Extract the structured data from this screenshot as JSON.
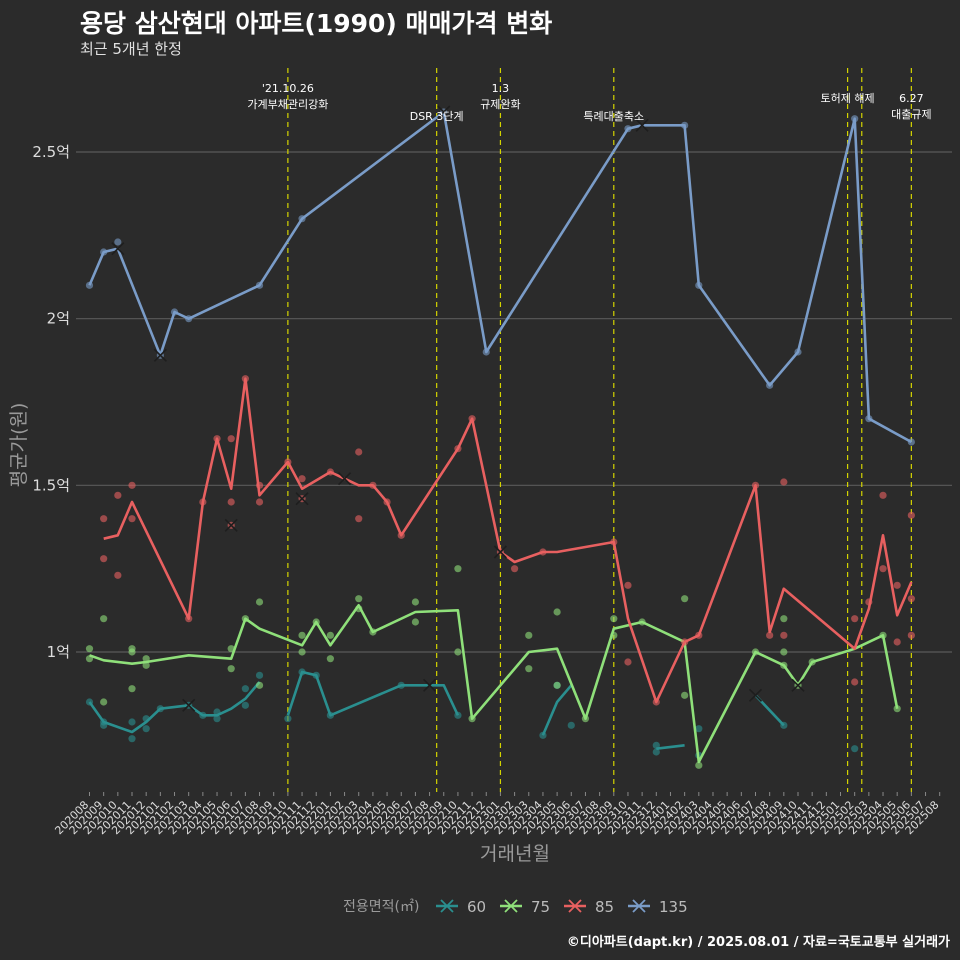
{
  "header": {
    "title": "용당 삼산현대 아파트(1990) 매매가격 변화",
    "subtitle": "최근 5개년 한정"
  },
  "caption": "©디아파트(dapt.kr) / 2025.08.01 / 자료=국토교통부 실거래가",
  "colors": {
    "background": "#2b2b2b",
    "grid": "#5a5a5a",
    "vline": "#d4d400",
    "s60": "#2a8f8f",
    "s75": "#8fe07a",
    "s85": "#e86060",
    "s135": "#7a9cc8"
  },
  "chart_data": {
    "type": "line",
    "xlabel": "거래년월",
    "ylabel": "평균가(원)",
    "x_categories": [
      "202008",
      "202009",
      "202010",
      "202011",
      "202012",
      "202101",
      "202102",
      "202103",
      "202104",
      "202105",
      "202106",
      "202107",
      "202108",
      "202109",
      "202110",
      "202111",
      "202112",
      "202201",
      "202202",
      "202203",
      "202204",
      "202205",
      "202206",
      "202207",
      "202208",
      "202209",
      "202210",
      "202211",
      "202212",
      "202301",
      "202302",
      "202303",
      "202304",
      "202305",
      "202306",
      "202307",
      "202308",
      "202309",
      "202310",
      "202311",
      "202312",
      "202401",
      "202402",
      "202403",
      "202404",
      "202405",
      "202406",
      "202407",
      "202408",
      "202409",
      "202410",
      "202411",
      "202412",
      "202501",
      "202502",
      "202503",
      "202504",
      "202505",
      "202506",
      "202507",
      "202508"
    ],
    "y_ticks": [
      {
        "value": 1.0,
        "label": "1억"
      },
      {
        "value": 1.5,
        "label": "1.5억"
      },
      {
        "value": 2.0,
        "label": "2억"
      },
      {
        "value": 2.5,
        "label": "2.5억"
      }
    ],
    "ylim": [
      0.58,
      2.77
    ],
    "grid": true,
    "legend": {
      "title": "전용면적(㎡)",
      "position": "bottom"
    },
    "annotations": [
      {
        "x": 14,
        "lines": [
          "'21.10.26",
          "가계부채관리강화"
        ],
        "level": 0
      },
      {
        "x": 24.5,
        "lines": [
          "DSR 3단계"
        ],
        "level": 2
      },
      {
        "x": 29,
        "lines": [
          "1.3",
          "규제완화"
        ],
        "level": 0
      },
      {
        "x": 37,
        "lines": [
          "특례대출축소"
        ],
        "level": 2
      },
      {
        "x": 53.5,
        "lines": [
          "토허제 해제"
        ],
        "level": 1
      },
      {
        "x": 58,
        "lines": [
          "6.27",
          "대출규제"
        ],
        "level": 1
      }
    ],
    "vlines": [
      14,
      24.5,
      29,
      37,
      53.5,
      54.5,
      58
    ],
    "series": [
      {
        "name": "60",
        "color": "#2a8f8f",
        "segments": [
          [
            [
              0,
              0.85
            ],
            [
              1,
              0.79
            ],
            [
              3,
              0.76
            ],
            [
              4,
              0.79
            ],
            [
              5,
              0.83
            ],
            [
              7,
              0.84
            ],
            [
              8,
              0.81
            ],
            [
              9,
              0.81
            ],
            [
              10,
              0.83
            ],
            [
              11,
              0.86
            ],
            [
              12,
              0.91
            ]
          ],
          [
            [
              14,
              0.81
            ],
            [
              15,
              0.94
            ],
            [
              16,
              0.93
            ],
            [
              17,
              0.81
            ],
            [
              22,
              0.9
            ],
            [
              25,
              0.9
            ],
            [
              26,
              0.81
            ]
          ],
          [
            [
              32,
              0.75
            ],
            [
              33,
              0.85
            ],
            [
              34,
              0.9
            ]
          ],
          [
            [
              40,
              0.71
            ],
            [
              42,
              0.72
            ]
          ],
          [
            [
              47,
              0.87
            ],
            [
              49,
              0.78
            ]
          ]
        ],
        "points": [
          [
            0,
            0.85
          ],
          [
            1,
            0.79
          ],
          [
            1,
            0.78
          ],
          [
            3,
            0.79
          ],
          [
            3,
            0.74
          ],
          [
            4,
            0.77
          ],
          [
            4,
            0.8
          ],
          [
            5,
            0.83
          ],
          [
            7,
            0.84
          ],
          [
            8,
            0.81
          ],
          [
            9,
            0.82
          ],
          [
            9,
            0.8
          ],
          [
            11,
            0.84
          ],
          [
            11,
            0.89
          ],
          [
            12,
            0.93
          ],
          [
            14,
            0.8
          ],
          [
            15,
            0.94
          ],
          [
            16,
            0.93
          ],
          [
            17,
            0.81
          ],
          [
            22,
            0.9
          ],
          [
            26,
            0.81
          ],
          [
            32,
            0.75
          ],
          [
            33,
            0.9
          ],
          [
            34,
            0.78
          ],
          [
            40,
            0.72
          ],
          [
            40,
            0.7
          ],
          [
            43,
            0.77
          ],
          [
            43,
            0.69
          ],
          [
            49,
            0.78
          ],
          [
            54,
            0.71
          ]
        ],
        "crosses": [
          [
            7,
            0.84
          ],
          [
            24,
            0.9
          ],
          [
            47,
            0.87
          ]
        ]
      },
      {
        "name": "75",
        "color": "#8fe07a",
        "segments": [
          [
            [
              0,
              0.99
            ],
            [
              1,
              0.975
            ],
            [
              3,
              0.965
            ],
            [
              4,
              0.97
            ],
            [
              7,
              0.99
            ],
            [
              10,
              0.98
            ],
            [
              11,
              1.1
            ],
            [
              12,
              1.07
            ],
            [
              15,
              1.02
            ],
            [
              16,
              1.09
            ],
            [
              17,
              1.02
            ],
            [
              19,
              1.14
            ],
            [
              20,
              1.06
            ],
            [
              23,
              1.12
            ],
            [
              26,
              1.125
            ],
            [
              27,
              0.8
            ],
            [
              31,
              1.0
            ],
            [
              33,
              1.01
            ],
            [
              35,
              0.8
            ],
            [
              37,
              1.07
            ],
            [
              39,
              1.09
            ],
            [
              42,
              1.03
            ],
            [
              43,
              0.67
            ],
            [
              47,
              1.0
            ],
            [
              49,
              0.96
            ],
            [
              50,
              0.9
            ],
            [
              51,
              0.97
            ],
            [
              54,
              1.01
            ],
            [
              56,
              1.05
            ],
            [
              57,
              0.83
            ]
          ]
        ],
        "points": [
          [
            0,
            1.01
          ],
          [
            0,
            0.98
          ],
          [
            1,
            1.1
          ],
          [
            1,
            0.85
          ],
          [
            3,
            1.0
          ],
          [
            3,
            1.01
          ],
          [
            3,
            0.89
          ],
          [
            4,
            0.98
          ],
          [
            4,
            0.96
          ],
          [
            10,
            1.01
          ],
          [
            10,
            0.95
          ],
          [
            11,
            1.1
          ],
          [
            12,
            1.15
          ],
          [
            12,
            0.9
          ],
          [
            15,
            1.05
          ],
          [
            15,
            1.0
          ],
          [
            16,
            1.09
          ],
          [
            17,
            1.05
          ],
          [
            17,
            0.98
          ],
          [
            19,
            1.16
          ],
          [
            19,
            1.13
          ],
          [
            20,
            1.06
          ],
          [
            23,
            1.15
          ],
          [
            23,
            1.09
          ],
          [
            26,
            1.25
          ],
          [
            26,
            1.0
          ],
          [
            27,
            0.8
          ],
          [
            31,
            1.05
          ],
          [
            31,
            0.95
          ],
          [
            33,
            1.12
          ],
          [
            33,
            0.9
          ],
          [
            35,
            0.8
          ],
          [
            37,
            1.05
          ],
          [
            37,
            1.1
          ],
          [
            39,
            1.09
          ],
          [
            42,
            1.16
          ],
          [
            42,
            0.87
          ],
          [
            43,
            0.66
          ],
          [
            47,
            1.0
          ],
          [
            49,
            0.96
          ],
          [
            49,
            1.1
          ],
          [
            49,
            1.0
          ],
          [
            50,
            0.9
          ],
          [
            51,
            0.97
          ],
          [
            56,
            1.05
          ],
          [
            57,
            0.83
          ]
        ],
        "crosses": [
          [
            50,
            0.9
          ]
        ]
      },
      {
        "name": "85",
        "color": "#e86060",
        "segments": [
          [
            [
              1,
              1.34
            ],
            [
              2,
              1.35
            ],
            [
              3,
              1.45
            ],
            [
              7,
              1.1
            ],
            [
              8,
              1.45
            ],
            [
              9,
              1.64
            ],
            [
              10,
              1.49
            ],
            [
              11,
              1.82
            ],
            [
              12,
              1.47
            ],
            [
              14,
              1.57
            ],
            [
              15,
              1.49
            ],
            [
              17,
              1.54
            ],
            [
              18,
              1.52
            ],
            [
              19,
              1.5
            ],
            [
              20,
              1.5
            ],
            [
              21,
              1.45
            ],
            [
              22,
              1.35
            ],
            [
              26,
              1.61
            ],
            [
              27,
              1.7
            ],
            [
              29,
              1.3
            ],
            [
              30,
              1.27
            ],
            [
              32,
              1.3
            ],
            [
              33,
              1.3
            ],
            [
              37,
              1.33
            ],
            [
              38,
              1.1
            ],
            [
              40,
              0.85
            ],
            [
              42,
              1.03
            ],
            [
              43,
              1.05
            ],
            [
              47,
              1.5
            ],
            [
              48,
              1.06
            ],
            [
              49,
              1.19
            ],
            [
              54,
              1.01
            ],
            [
              55,
              1.13
            ],
            [
              56,
              1.35
            ],
            [
              57,
              1.11
            ],
            [
              58,
              1.21
            ]
          ]
        ],
        "points": [
          [
            1,
            1.4
          ],
          [
            1,
            1.28
          ],
          [
            2,
            1.47
          ],
          [
            2,
            1.23
          ],
          [
            3,
            1.5
          ],
          [
            3,
            1.4
          ],
          [
            7,
            1.1
          ],
          [
            8,
            1.45
          ],
          [
            9,
            1.64
          ],
          [
            10,
            1.64
          ],
          [
            10,
            1.45
          ],
          [
            10,
            1.38
          ],
          [
            11,
            1.82
          ],
          [
            12,
            1.5
          ],
          [
            12,
            1.45
          ],
          [
            14,
            1.57
          ],
          [
            15,
            1.52
          ],
          [
            15,
            1.46
          ],
          [
            17,
            1.54
          ],
          [
            19,
            1.6
          ],
          [
            19,
            1.4
          ],
          [
            20,
            1.5
          ],
          [
            21,
            1.45
          ],
          [
            22,
            1.35
          ],
          [
            26,
            1.61
          ],
          [
            27,
            1.7
          ],
          [
            29,
            1.3
          ],
          [
            30,
            1.25
          ],
          [
            32,
            1.3
          ],
          [
            37,
            1.33
          ],
          [
            38,
            1.2
          ],
          [
            38,
            0.97
          ],
          [
            40,
            0.85
          ],
          [
            42,
            1.03
          ],
          [
            43,
            1.05
          ],
          [
            47,
            1.5
          ],
          [
            48,
            1.05
          ],
          [
            49,
            1.51
          ],
          [
            49,
            1.05
          ],
          [
            54,
            1.1
          ],
          [
            54,
            0.91
          ],
          [
            55,
            1.15
          ],
          [
            56,
            1.47
          ],
          [
            56,
            1.25
          ],
          [
            57,
            1.2
          ],
          [
            57,
            1.03
          ],
          [
            58,
            1.41
          ],
          [
            58,
            1.16
          ],
          [
            58,
            1.05
          ]
        ],
        "crosses": [
          [
            10,
            1.38
          ],
          [
            15,
            1.46
          ],
          [
            18,
            1.52
          ],
          [
            29,
            1.3
          ]
        ]
      },
      {
        "name": "135",
        "color": "#7a9cc8",
        "segments": [
          [
            [
              0,
              2.1
            ],
            [
              1,
              2.2
            ],
            [
              2,
              2.21
            ],
            [
              5,
              1.89
            ],
            [
              6,
              2.02
            ],
            [
              7,
              2.0
            ],
            [
              12,
              2.1
            ],
            [
              15,
              2.3
            ],
            [
              25,
              2.62
            ],
            [
              28,
              1.9
            ],
            [
              38,
              2.57
            ],
            [
              39,
              2.58
            ],
            [
              42,
              2.58
            ],
            [
              43,
              2.1
            ],
            [
              48,
              1.8
            ],
            [
              50,
              1.9
            ],
            [
              54,
              2.6
            ],
            [
              55,
              1.7
            ],
            [
              58,
              1.63
            ]
          ]
        ],
        "points": [
          [
            0,
            2.1
          ],
          [
            1,
            2.2
          ],
          [
            2,
            2.23
          ],
          [
            5,
            1.89
          ],
          [
            6,
            2.02
          ],
          [
            7,
            2.0
          ],
          [
            12,
            2.1
          ],
          [
            15,
            2.3
          ],
          [
            25,
            2.62
          ],
          [
            28,
            1.9
          ],
          [
            38,
            2.57
          ],
          [
            42,
            2.58
          ],
          [
            43,
            2.1
          ],
          [
            48,
            1.8
          ],
          [
            50,
            1.9
          ],
          [
            54,
            2.6
          ],
          [
            55,
            1.7
          ],
          [
            58,
            1.63
          ]
        ],
        "crosses": [
          [
            2,
            2.21
          ],
          [
            5,
            1.89
          ],
          [
            39,
            2.58
          ],
          [
            25,
            2.62
          ]
        ]
      }
    ]
  }
}
